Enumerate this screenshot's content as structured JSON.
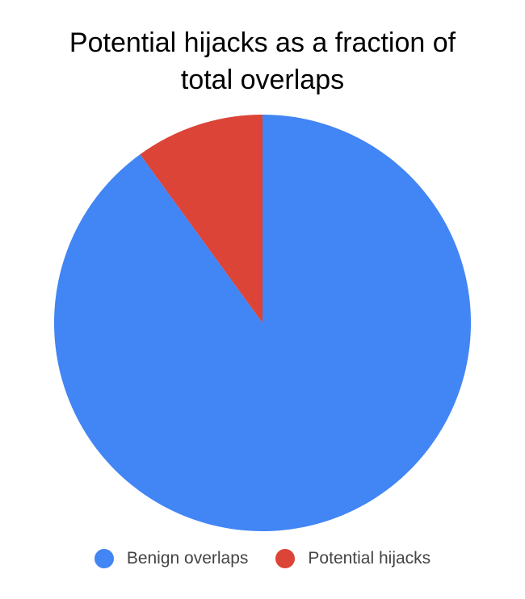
{
  "chart_data": {
    "type": "pie",
    "title_lines": [
      "Potential hijacks as a fraction of",
      "total overlaps"
    ],
    "slices": [
      {
        "label": "Benign overlaps",
        "value": 90,
        "color": "#4285f4"
      },
      {
        "label": "Potential hijacks",
        "value": 10,
        "color": "#db4437"
      }
    ],
    "start_slice": "Potential hijacks",
    "direction": "counter-clockwise from top",
    "legend_position": "bottom",
    "data_labels": false
  }
}
